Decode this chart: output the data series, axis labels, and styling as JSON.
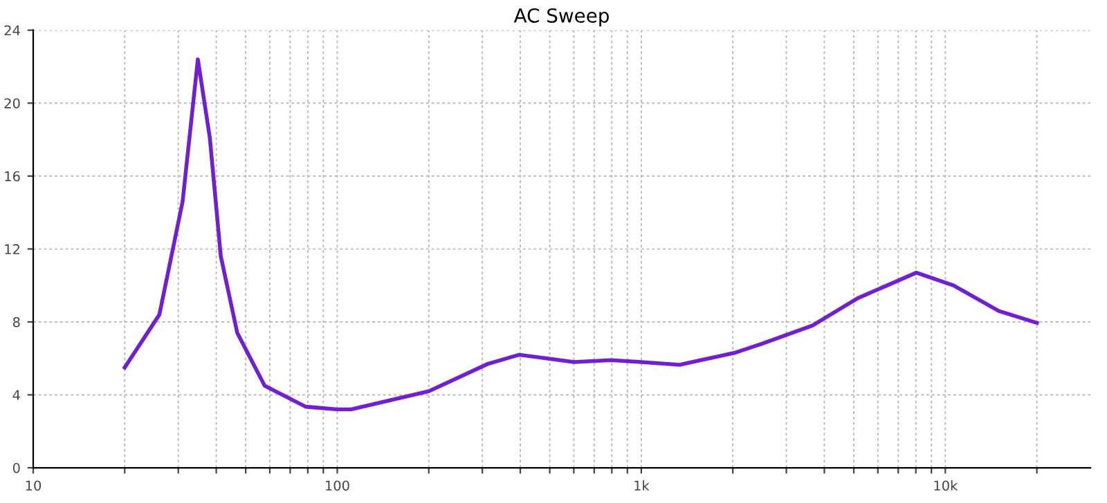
{
  "chart_data": {
    "type": "line",
    "title": "AC Sweep",
    "log": "x",
    "xlim": [
      10,
      30000
    ],
    "ylim": [
      0,
      24
    ],
    "xticks": [
      {
        "value": 10,
        "label": "10"
      },
      {
        "value": 20,
        "label": null
      },
      {
        "value": 30,
        "label": null
      },
      {
        "value": 40,
        "label": null
      },
      {
        "value": 50,
        "label": null
      },
      {
        "value": 60,
        "label": null
      },
      {
        "value": 70,
        "label": null
      },
      {
        "value": 80,
        "label": null
      },
      {
        "value": 90,
        "label": null
      },
      {
        "value": 100,
        "label": "100"
      },
      {
        "value": 200,
        "label": null
      },
      {
        "value": 300,
        "label": null
      },
      {
        "value": 400,
        "label": null
      },
      {
        "value": 500,
        "label": null
      },
      {
        "value": 600,
        "label": null
      },
      {
        "value": 700,
        "label": null
      },
      {
        "value": 800,
        "label": null
      },
      {
        "value": 900,
        "label": null
      },
      {
        "value": 1000,
        "label": "1k"
      },
      {
        "value": 2000,
        "label": null
      },
      {
        "value": 3000,
        "label": null
      },
      {
        "value": 4000,
        "label": null
      },
      {
        "value": 5000,
        "label": null
      },
      {
        "value": 6000,
        "label": null
      },
      {
        "value": 7000,
        "label": null
      },
      {
        "value": 8000,
        "label": null
      },
      {
        "value": 9000,
        "label": null
      },
      {
        "value": 10000,
        "label": "10k"
      },
      {
        "value": 20000,
        "label": null
      }
    ],
    "yticks": [
      0,
      4,
      8,
      12,
      16,
      20,
      24
    ],
    "grid": true,
    "marker": "none",
    "line_style": "solid",
    "series": [
      {
        "color": "#7020d0",
        "x": [
          20,
          26,
          31,
          34.8,
          38.1,
          41.4,
          46.9,
          57.7,
          78.7,
          100,
          111,
          200,
          313,
          397,
          489,
          601,
          795,
          1000,
          1337,
          2023,
          2489,
          3656,
          5150,
          8030,
          10640,
          15000,
          20000
        ],
        "values": [
          5.5,
          8.4,
          14.6,
          22.4,
          18.1,
          11.6,
          7.4,
          4.5,
          3.35,
          3.2,
          3.2,
          4.2,
          5.7,
          6.2,
          6.0,
          5.8,
          5.9,
          5.8,
          5.65,
          6.3,
          6.8,
          7.8,
          9.3,
          10.7,
          10.0,
          8.6,
          7.95
        ]
      }
    ]
  }
}
